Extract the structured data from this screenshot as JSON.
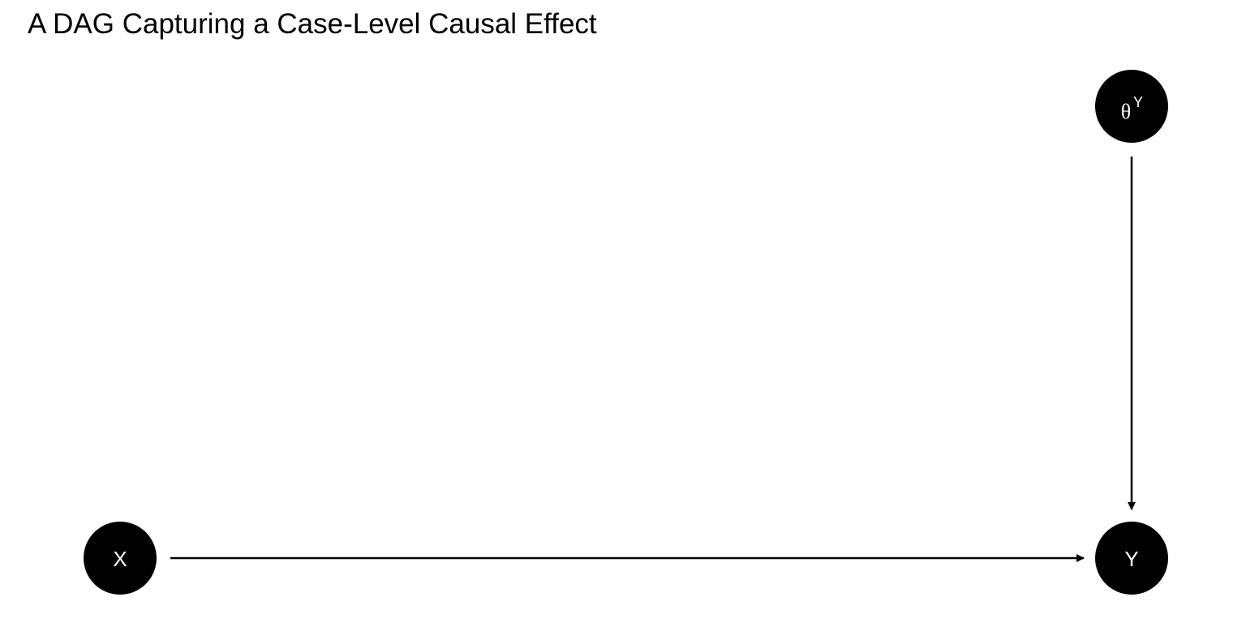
{
  "title": "A DAG Capturing a Case-Level Causal Effect",
  "colors": {
    "node_fill": "#000000",
    "node_text": "#ffffff",
    "edge": "#000000",
    "background": "#ffffff"
  },
  "nodes": {
    "x": {
      "label": "X"
    },
    "y": {
      "label": "Y"
    },
    "theta_y": {
      "label": "θ",
      "superscript": "Y"
    }
  },
  "edges": [
    {
      "from": "X",
      "to": "Y"
    },
    {
      "from": "θY",
      "to": "Y"
    }
  ]
}
